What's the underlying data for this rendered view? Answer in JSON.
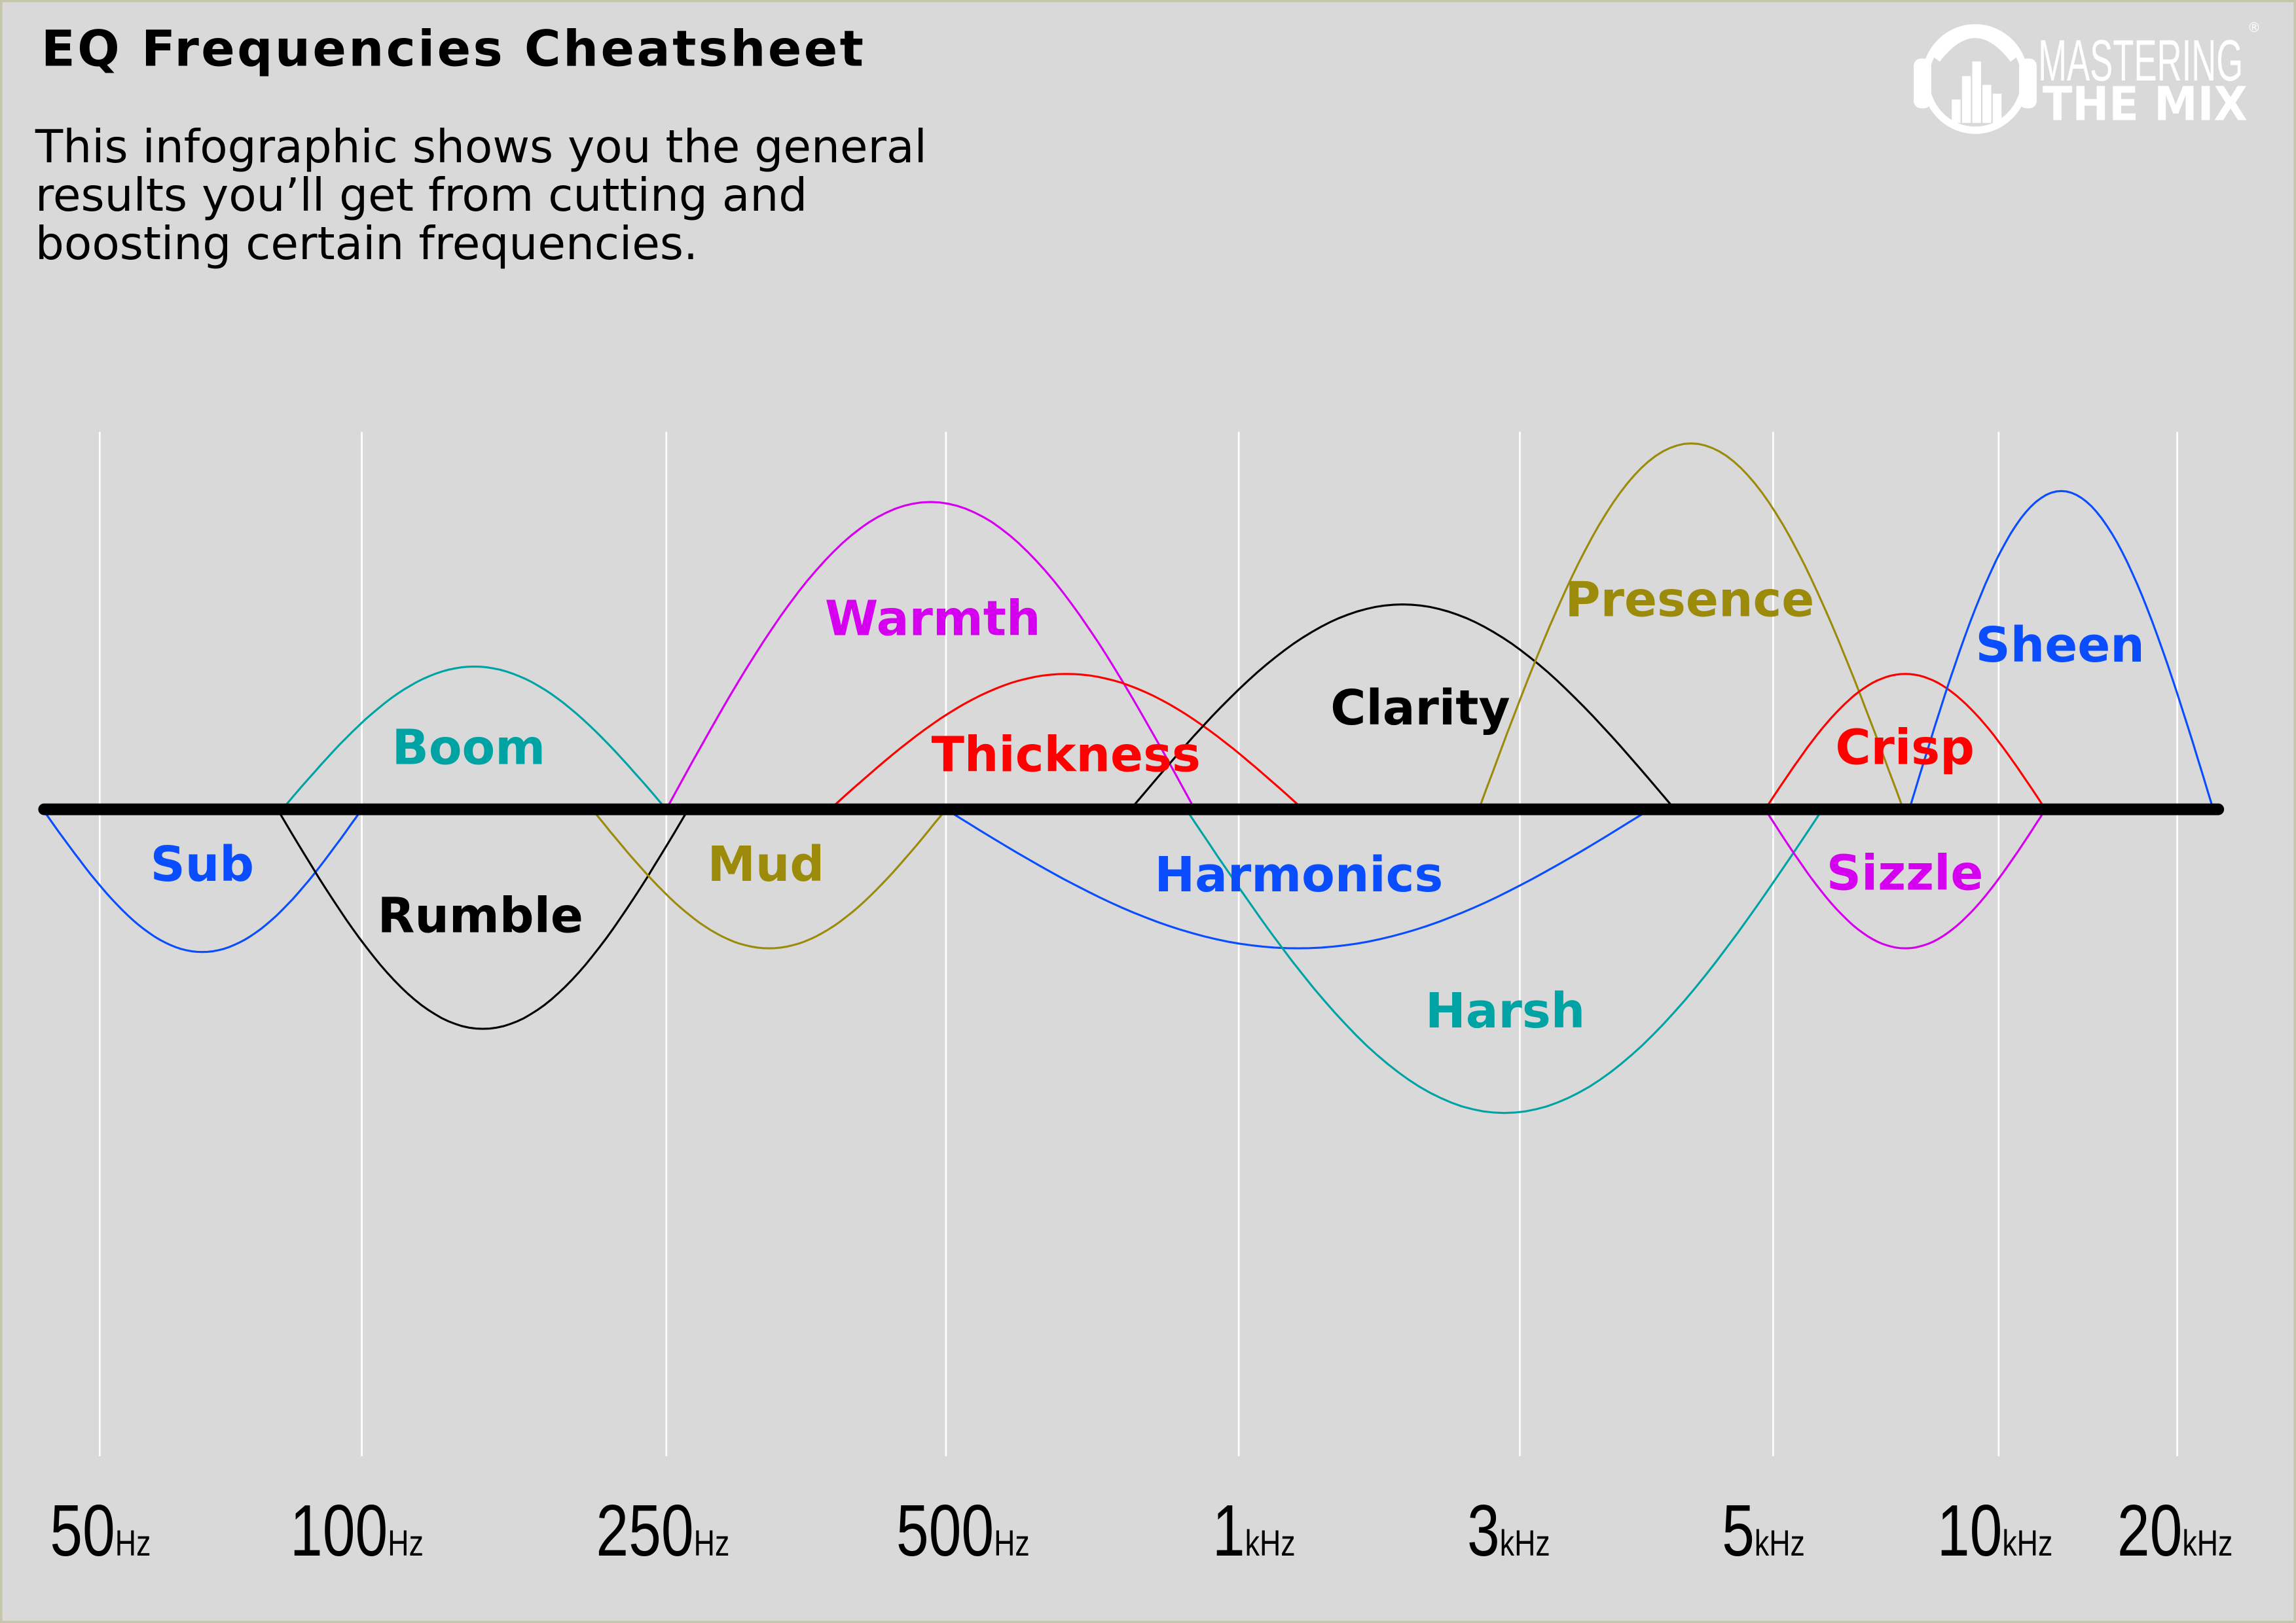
{
  "header": {
    "title": "EQ Frequencies Cheatsheet",
    "description_lines": [
      "This infographic shows you the general",
      "results you’ll get from cutting and",
      "boosting certain frequencies."
    ]
  },
  "logo": {
    "line1": "MASTERING",
    "line2": "THE MIX",
    "mark": "®",
    "icon": "headphones-equalizer-icon"
  },
  "colors": {
    "background": "#d9d9d9",
    "border": "#c6c6aa",
    "gridline": "#ffffff",
    "baseline": "#000000"
  },
  "chart_data": {
    "type": "diagram",
    "x_scale": "frequency (non-uniform, log-like)",
    "ticks": [
      {
        "value": "50",
        "unit": "Hz",
        "hz": 50
      },
      {
        "value": "100",
        "unit": "Hz",
        "hz": 100
      },
      {
        "value": "250",
        "unit": "Hz",
        "hz": 250
      },
      {
        "value": "500",
        "unit": "Hz",
        "hz": 500
      },
      {
        "value": "1",
        "unit": "kHz",
        "hz": 1000
      },
      {
        "value": "3",
        "unit": "kHz",
        "hz": 3000
      },
      {
        "value": "5",
        "unit": "kHz",
        "hz": 5000
      },
      {
        "value": "10",
        "unit": "kHz",
        "hz": 10000
      },
      {
        "value": "20",
        "unit": "kHz",
        "hz": 20000
      }
    ],
    "bands": [
      {
        "name": "Sub",
        "low_hz": 43,
        "high_hz": 100,
        "level": -39,
        "color": "#0a4dff"
      },
      {
        "name": "Boom",
        "low_hz": 81,
        "high_hz": 250,
        "level": 39,
        "color": "#00a3a3"
      },
      {
        "name": "Rumble",
        "low_hz": 80,
        "high_hz": 264,
        "level": -60,
        "color": "#000000"
      },
      {
        "name": "Mud",
        "low_hz": 200,
        "high_hz": 500,
        "level": -38,
        "color": "#9c8a0a"
      },
      {
        "name": "Warmth",
        "low_hz": 250,
        "high_hz": 901,
        "level": 84,
        "color": "#d600f0"
      },
      {
        "name": "Thickness",
        "low_hz": 375,
        "high_hz": 1286,
        "level": 37,
        "color": "#ff0000"
      },
      {
        "name": "Harmonics",
        "low_hz": 500,
        "high_hz": 3900,
        "level": -38,
        "color": "#0a4dff"
      },
      {
        "name": "Clarity",
        "low_hz": 774,
        "high_hz": 4100,
        "level": 56,
        "color": "#000000"
      },
      {
        "name": "Harsh",
        "low_hz": 883,
        "high_hz": 5820,
        "level": -83,
        "color": "#00a3a3"
      },
      {
        "name": "Presence",
        "low_hz": 2556,
        "high_hz": 7460,
        "level": 100,
        "color": "#9c8a0a"
      },
      {
        "name": "Crisp",
        "low_hz": 4920,
        "high_hz": 11990,
        "level": 37,
        "color": "#ff0000"
      },
      {
        "name": "Sizzle",
        "low_hz": 4920,
        "high_hz": 11990,
        "level": -38,
        "color": "#d600f0"
      },
      {
        "name": "Sheen",
        "low_hz": 7600,
        "high_hz": 23000,
        "level": 87,
        "color": "#0a4dff"
      }
    ]
  }
}
